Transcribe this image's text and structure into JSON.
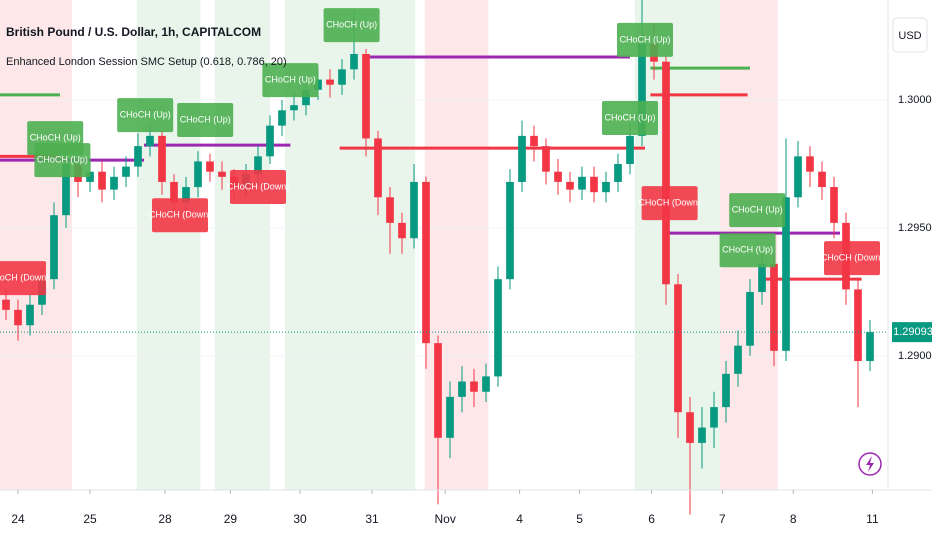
{
  "chart_data": {
    "type": "candlestick",
    "title": "British Pound / U.S. Dollar, 1h, CAPITALCOM",
    "subtitle": "Enhanced London Session SMC Setup (0.618, 0.786, 20)",
    "currency": "USD",
    "up_color": "#089981",
    "down_color": "#f23645",
    "xlim": [
      -0.5,
      73.5
    ],
    "ylim": [
      1.28476,
      1.30391
    ],
    "yticks": [
      {
        "value": 1.29,
        "label": "1.29000"
      },
      {
        "value": 1.295,
        "label": "1.29500"
      },
      {
        "value": 1.3,
        "label": "1.30000"
      }
    ],
    "xticks": [
      {
        "value": 1.0,
        "label": "24"
      },
      {
        "value": 7.0,
        "label": "25"
      },
      {
        "value": 13.25,
        "label": "28"
      },
      {
        "value": 18.7,
        "label": "29"
      },
      {
        "value": 24.5,
        "label": "30"
      },
      {
        "value": 30.5,
        "label": "31"
      },
      {
        "value": 36.6,
        "label": "Nov"
      },
      {
        "value": 42.8,
        "label": "4"
      },
      {
        "value": 47.8,
        "label": "5"
      },
      {
        "value": 53.8,
        "label": "6"
      },
      {
        "value": 59.7,
        "label": "7"
      },
      {
        "value": 65.6,
        "label": "8"
      },
      {
        "value": 72.2,
        "label": "11"
      }
    ],
    "x": [
      0,
      1,
      2,
      3,
      4,
      5,
      6,
      7,
      8,
      9,
      10,
      11,
      12,
      13,
      14,
      15,
      16,
      17,
      18,
      19,
      20,
      21,
      22,
      23,
      24,
      25,
      26,
      27,
      28,
      29,
      30,
      31,
      32,
      33,
      34,
      35,
      36,
      37,
      38,
      39,
      40,
      41,
      42,
      43,
      44,
      45,
      46,
      47,
      48,
      49,
      50,
      51,
      52,
      53,
      54,
      55,
      56,
      57,
      58,
      59,
      60,
      61,
      62,
      63,
      64,
      65,
      66,
      67,
      68,
      69,
      70,
      71,
      72
    ],
    "open": [
      1.2922,
      1.2918,
      1.2912,
      1.292,
      1.293,
      1.2955,
      1.2975,
      1.2968,
      1.2972,
      1.2965,
      1.297,
      1.2974,
      1.2982,
      1.2986,
      1.2968,
      1.296,
      1.2966,
      1.2976,
      1.2972,
      1.297,
      1.2966,
      1.2971,
      1.2978,
      1.299,
      1.2996,
      1.2998,
      1.3004,
      1.3008,
      1.3006,
      1.3012,
      1.3018,
      1.2985,
      1.2962,
      1.2952,
      1.2946,
      1.2968,
      1.2905,
      1.2868,
      1.2884,
      1.289,
      1.2886,
      1.2892,
      1.293,
      1.2968,
      1.2986,
      1.2982,
      1.2972,
      1.2968,
      1.2965,
      1.297,
      1.2964,
      1.2968,
      1.2975,
      1.2986,
      1.3022,
      1.3015,
      1.2928,
      1.2878,
      1.2866,
      1.2872,
      1.288,
      1.2893,
      1.2904,
      1.2925,
      1.2936,
      1.2902,
      1.2962,
      1.2978,
      1.2972,
      1.2966,
      1.2952,
      1.2926,
      1.2898
    ],
    "high": [
      1.2926,
      1.2922,
      1.2924,
      1.2934,
      1.296,
      1.298,
      1.2979,
      1.2977,
      1.2976,
      1.2974,
      1.2978,
      1.2987,
      1.2991,
      1.2988,
      1.2971,
      1.297,
      1.298,
      1.2979,
      1.2976,
      1.2973,
      1.2975,
      1.2982,
      1.2994,
      1.3,
      1.3003,
      1.3008,
      1.3012,
      1.3012,
      1.3016,
      1.3035,
      1.302,
      1.2988,
      1.2966,
      1.2956,
      1.2975,
      1.297,
      1.2908,
      1.289,
      1.2896,
      1.2895,
      1.2897,
      1.2935,
      1.2973,
      1.2992,
      1.299,
      1.2985,
      1.2977,
      1.2972,
      1.2974,
      1.2974,
      1.2972,
      1.2979,
      1.2991,
      1.3045,
      1.303,
      1.3018,
      1.2932,
      1.2884,
      1.288,
      1.2886,
      1.2898,
      1.291,
      1.293,
      1.2942,
      1.294,
      1.2985,
      1.2984,
      1.2982,
      1.2976,
      1.297,
      1.2956,
      1.293,
      1.2914
    ],
    "low": [
      1.2914,
      1.2906,
      1.2908,
      1.2916,
      1.2926,
      1.295,
      1.2962,
      1.2964,
      1.296,
      1.2961,
      1.2966,
      1.297,
      1.2978,
      1.2963,
      1.2955,
      1.2956,
      1.2962,
      1.2968,
      1.2965,
      1.2961,
      1.2962,
      1.2967,
      1.2975,
      1.2986,
      1.2992,
      1.2994,
      1.3,
      1.3001,
      1.3002,
      1.3008,
      1.2978,
      1.2955,
      1.294,
      1.294,
      1.2942,
      1.2895,
      1.2842,
      1.286,
      1.2878,
      1.288,
      1.2882,
      1.2888,
      1.2926,
      1.2964,
      1.2976,
      1.2967,
      1.2963,
      1.296,
      1.2961,
      1.296,
      1.296,
      1.2964,
      1.2971,
      1.2982,
      1.3008,
      1.292,
      1.2868,
      1.2838,
      1.2856,
      1.2864,
      1.2874,
      1.2888,
      1.29,
      1.292,
      1.2896,
      1.2898,
      1.2958,
      1.2966,
      1.2961,
      1.2946,
      1.292,
      1.288,
      1.2894
    ],
    "close": [
      1.2918,
      1.2912,
      1.292,
      1.293,
      1.2955,
      1.2975,
      1.2968,
      1.2972,
      1.2965,
      1.297,
      1.2974,
      1.2982,
      1.2986,
      1.2968,
      1.296,
      1.2966,
      1.2976,
      1.2972,
      1.297,
      1.2966,
      1.2971,
      1.2978,
      1.299,
      1.2996,
      1.2998,
      1.3004,
      1.3008,
      1.3006,
      1.3012,
      1.3018,
      1.2985,
      1.2962,
      1.2952,
      1.2946,
      1.2968,
      1.2905,
      1.2868,
      1.2884,
      1.289,
      1.2886,
      1.2892,
      1.293,
      1.2968,
      1.2986,
      1.2982,
      1.2972,
      1.2968,
      1.2965,
      1.297,
      1.2964,
      1.2968,
      1.2975,
      1.2986,
      1.3022,
      1.3015,
      1.2928,
      1.2878,
      1.2866,
      1.2872,
      1.288,
      1.2893,
      1.2904,
      1.2925,
      1.2936,
      1.2902,
      1.2962,
      1.2978,
      1.2972,
      1.2966,
      1.2952,
      1.2926,
      1.2898,
      1.29093
    ],
    "current_price": 1.29093,
    "current_color": "#089981",
    "sessions": [
      {
        "start": -0.5,
        "end": 5.5,
        "color": "#f23645"
      },
      {
        "start": 10.9,
        "end": 16.2,
        "color": "#4caf50"
      },
      {
        "start": 17.4,
        "end": 22.0,
        "color": "#4caf50"
      },
      {
        "start": 23.25,
        "end": 34.1,
        "color": "#4caf50"
      },
      {
        "start": 34.9,
        "end": 40.2,
        "color": "#f23645"
      },
      {
        "start": 52.4,
        "end": 59.5,
        "color": "#4caf50"
      },
      {
        "start": 59.5,
        "end": 64.3,
        "color": "#f23645"
      }
    ],
    "levels": [
      {
        "start": -0.5,
        "end": 11.5,
        "value": 1.29765,
        "color": "#9c27b0"
      },
      {
        "start": 11.5,
        "end": 23.7,
        "value": 1.29824,
        "color": "#9c27b0"
      },
      {
        "start": 29.9,
        "end": 52.0,
        "value": 1.30168,
        "color": "#9c27b0"
      },
      {
        "start": 55.2,
        "end": 69.5,
        "value": 1.2948,
        "color": "#9c27b0"
      },
      {
        "start": -0.5,
        "end": 4.5,
        "value": 1.2978,
        "color": "#f23645"
      },
      {
        "start": 27.8,
        "end": 53.25,
        "value": 1.29812,
        "color": "#f23645"
      },
      {
        "start": 53.7,
        "end": 61.8,
        "value": 1.3002,
        "color": "#f23645"
      },
      {
        "start": 62.8,
        "end": 71.3,
        "value": 1.293,
        "color": "#f23645"
      },
      {
        "start": -0.5,
        "end": 4.5,
        "value": 1.3002,
        "color": "#4caf50"
      },
      {
        "start": 53.7,
        "end": 62.0,
        "value": 1.30125,
        "color": "#4caf50"
      }
    ],
    "annotations": [
      {
        "text": "CHoCH (Down)",
        "x": 1.0,
        "y": 1.29304,
        "color": "#f23645"
      },
      {
        "text": "CHoCH (Up)",
        "x": 4.1,
        "y": 1.29851,
        "color": "#4caf50"
      },
      {
        "text": "CHoCH (Up)",
        "x": 4.7,
        "y": 1.29765,
        "color": "#4caf50"
      },
      {
        "text": "CHoCH (Up)",
        "x": 11.6,
        "y": 1.29941,
        "color": "#4caf50"
      },
      {
        "text": "CHoCH (Down)",
        "x": 14.5,
        "y": 1.2955,
        "color": "#f23645"
      },
      {
        "text": "CHoCH (Up)",
        "x": 16.6,
        "y": 1.29922,
        "color": "#4caf50"
      },
      {
        "text": "CHoCH (Down)",
        "x": 21.0,
        "y": 1.2966,
        "color": "#f23645"
      },
      {
        "text": "CHoCH (Up)",
        "x": 23.7,
        "y": 1.30078,
        "color": "#4caf50"
      },
      {
        "text": "CHoCH (Up)",
        "x": 28.8,
        "y": 1.30293,
        "color": "#4caf50"
      },
      {
        "text": "CHoCH (Up)",
        "x": 52.0,
        "y": 1.2993,
        "color": "#4caf50"
      },
      {
        "text": "CHoCH (Up)",
        "x": 53.25,
        "y": 1.30235,
        "color": "#4caf50"
      },
      {
        "text": "CHoCH (Down)",
        "x": 55.3,
        "y": 1.29597,
        "color": "#f23645"
      },
      {
        "text": "CHoCH (Up)",
        "x": 62.6,
        "y": 1.2957,
        "color": "#4caf50"
      },
      {
        "text": "CHoCH (Up)",
        "x": 61.8,
        "y": 1.29413,
        "color": "#4caf50"
      },
      {
        "text": "CHoCH (Down)",
        "x": 70.5,
        "y": 1.29382,
        "color": "#f23645"
      }
    ]
  }
}
